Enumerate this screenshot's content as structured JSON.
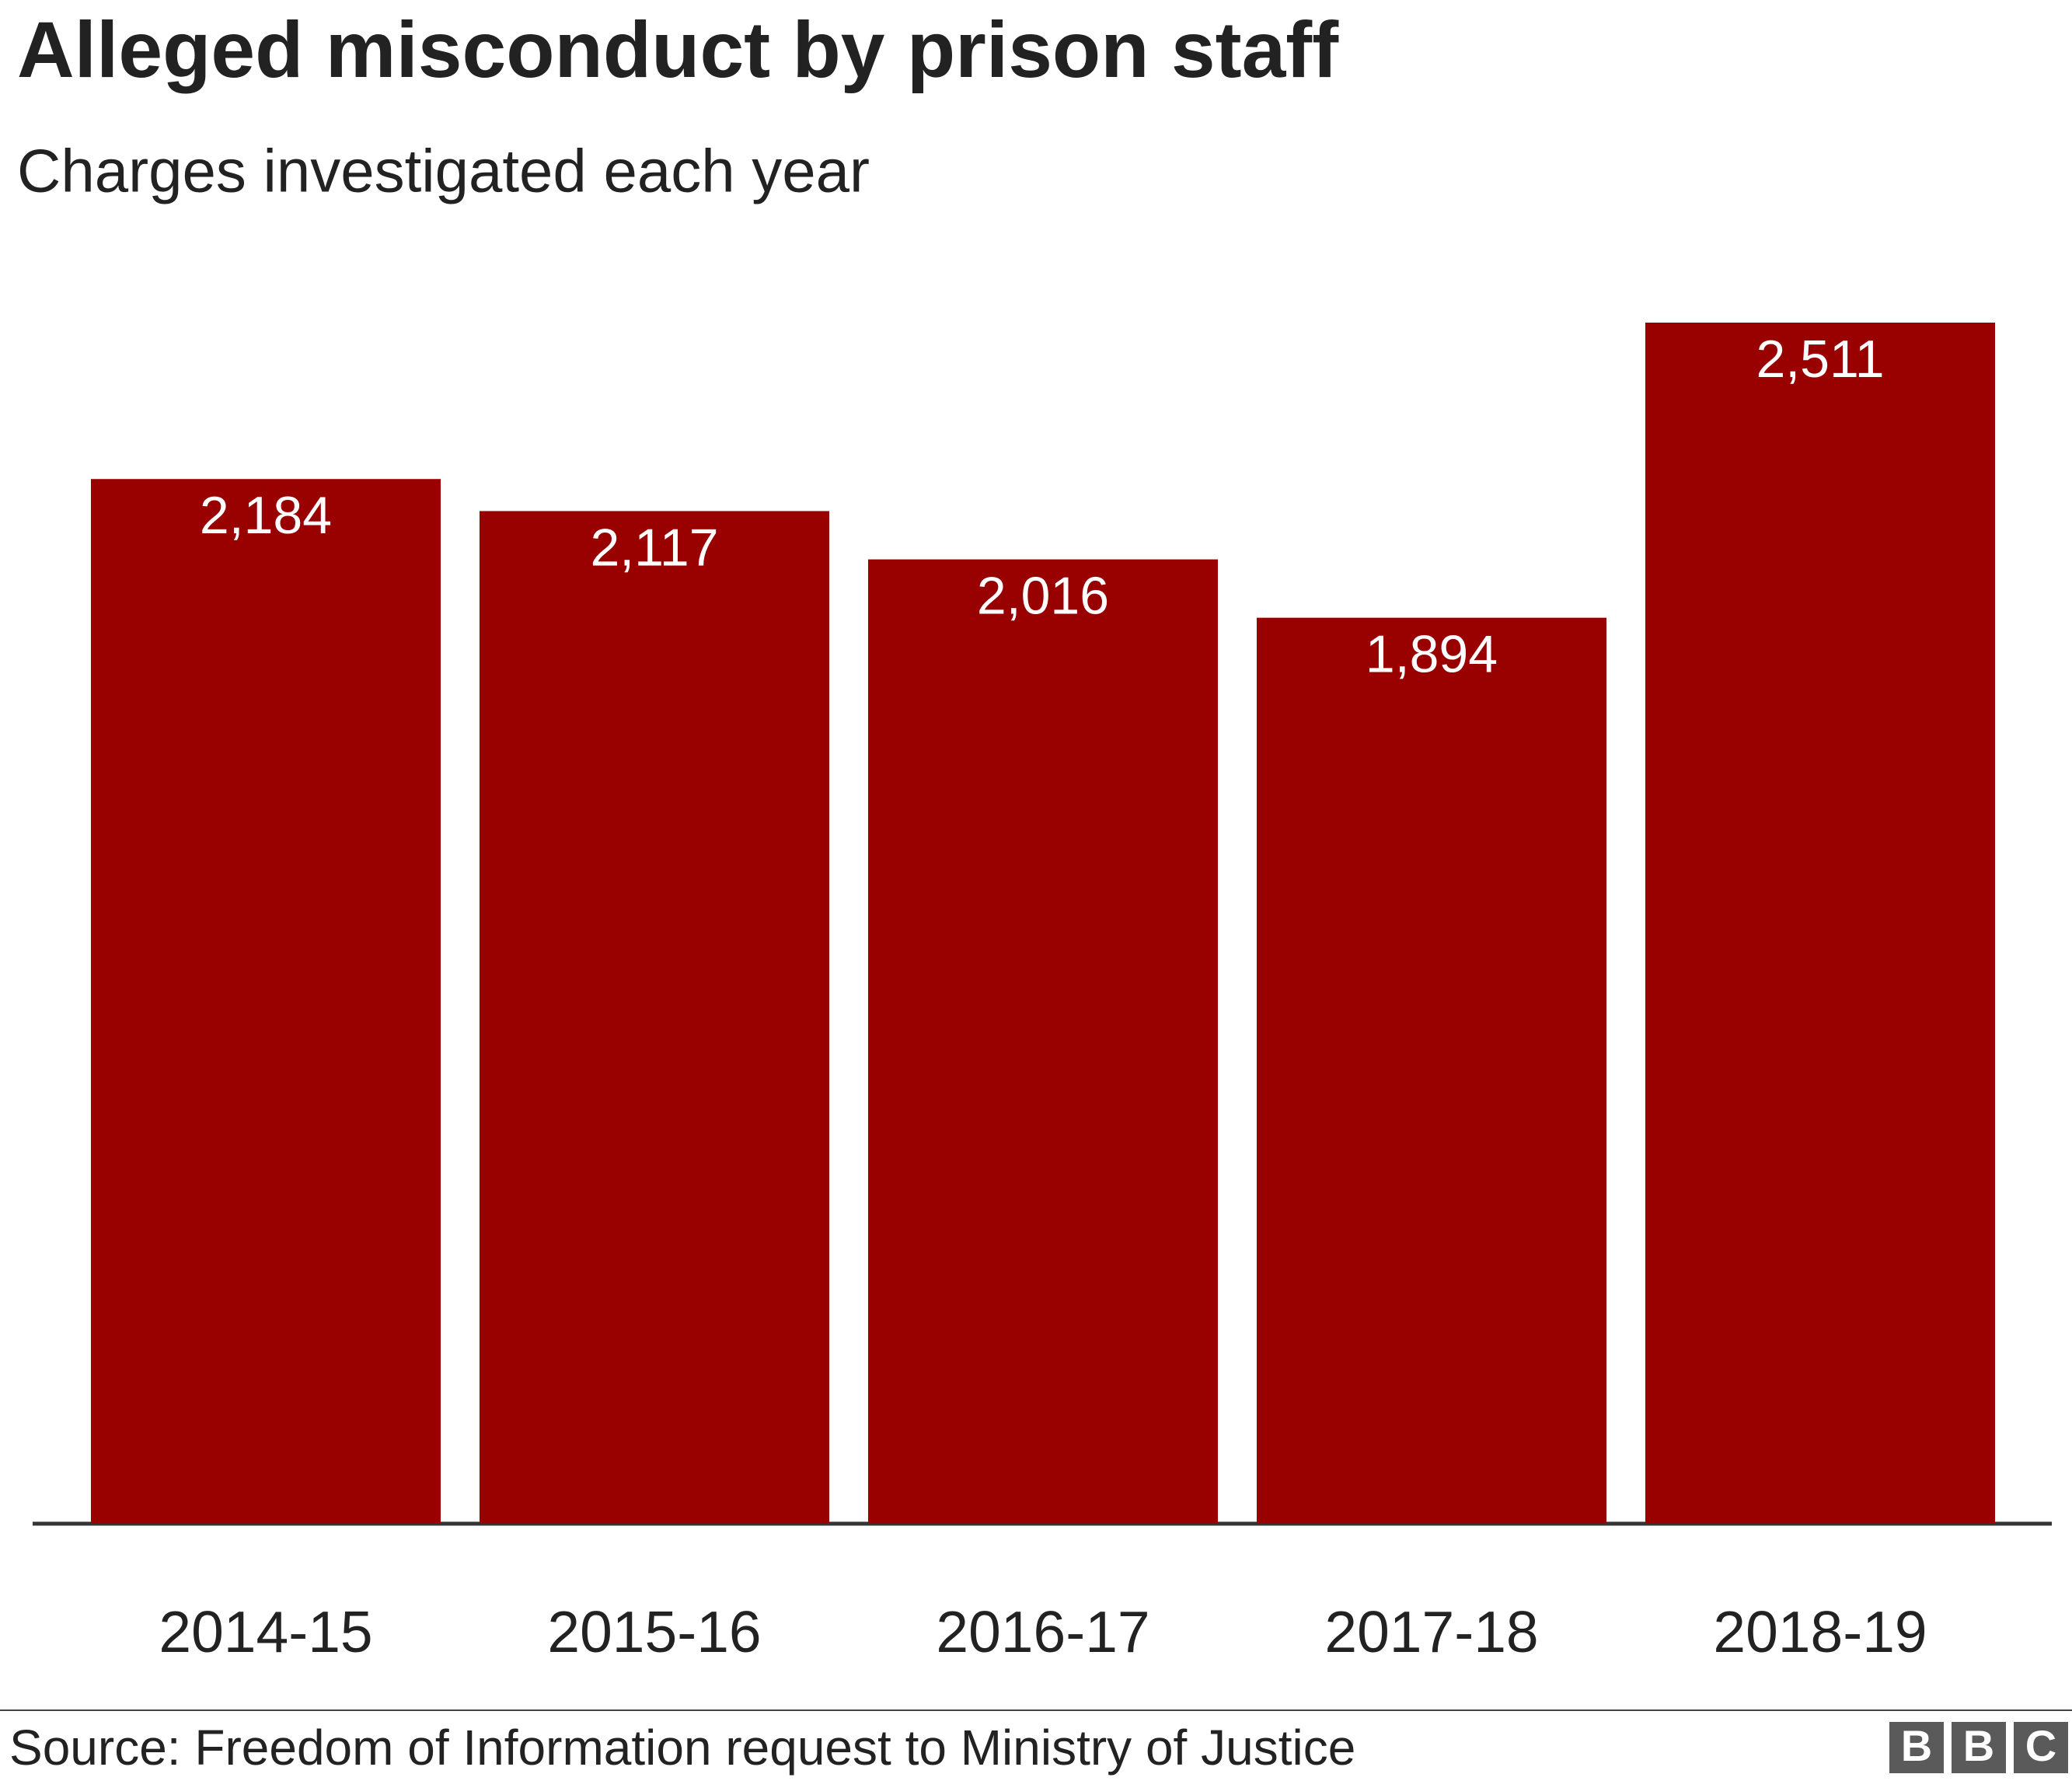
{
  "chart_data": {
    "type": "bar",
    "title": "Alleged misconduct by prison staff",
    "subtitle": "Charges investigated each year",
    "categories": [
      "2014-15",
      "2015-16",
      "2016-17",
      "2017-18",
      "2018-19"
    ],
    "values": [
      2184,
      2117,
      2016,
      1894,
      2511
    ],
    "value_labels": [
      "2,184",
      "2,117",
      "2,016",
      "1,894",
      "2,511"
    ],
    "color": "#990000",
    "source": "Source: Freedom of Information request to Ministry of Justice",
    "logo": [
      "B",
      "B",
      "C"
    ]
  }
}
